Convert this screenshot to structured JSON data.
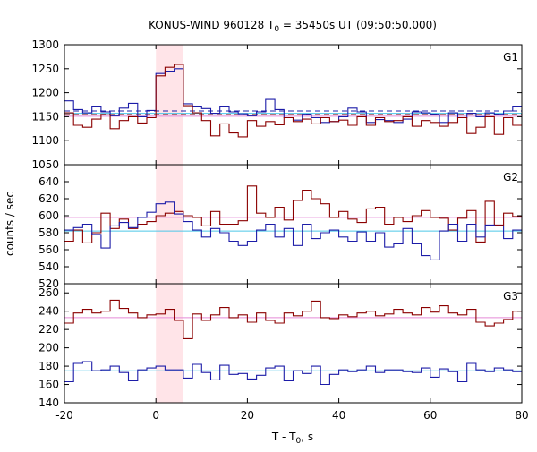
{
  "chart_data": {
    "type": "line",
    "title": {
      "prefix": "KONUS-WIND 960128 T",
      "subscript": "0",
      "suffix": " = 35450s UT (09:50:50.000)"
    },
    "xlabel": {
      "prefix": "T - T",
      "subscript": "0",
      "suffix": ", s"
    },
    "ylabel": "counts / sec",
    "xlim": [
      -20,
      80
    ],
    "xticks": [
      "-20",
      "0",
      "20",
      "40",
      "60",
      "80"
    ],
    "shaded_interval": [
      0,
      6
    ],
    "shade_color": "#ffe4e8",
    "colors": {
      "dark_red": "#8b0000",
      "blue": "#1c1ca8",
      "pink": "#e58ad8",
      "cyan": "#4cc6e8"
    },
    "panels": [
      {
        "label": "G1",
        "ylim": [
          1050,
          1300
        ],
        "yticks": [
          "1050",
          "1100",
          "1150",
          "1200",
          "1250",
          "1300"
        ],
        "series": [
          {
            "color_key": "blue",
            "x": [
              -20,
              -18,
              -16,
              -14,
              -12,
              -10,
              -8,
              -6,
              -4,
              -2,
              0,
              2,
              4,
              6,
              8,
              10,
              12,
              14,
              16,
              18,
              20,
              22,
              24,
              26,
              28,
              30,
              32,
              34,
              36,
              38,
              40,
              42,
              44,
              46,
              48,
              50,
              52,
              54,
              56,
              58,
              60,
              62,
              64,
              66,
              68,
              70,
              72,
              74,
              76,
              78
            ],
            "y": [
              1183,
              1165,
              1158,
              1172,
              1160,
              1152,
              1168,
              1178,
              1150,
              1163,
              1240,
              1245,
              1250,
              1177,
              1172,
              1167,
              1157,
              1172,
              1160,
              1156,
              1152,
              1160,
              1186,
              1165,
              1148,
              1143,
              1155,
              1148,
              1138,
              1140,
              1150,
              1168,
              1160,
              1138,
              1144,
              1142,
              1138,
              1145,
              1160,
              1158,
              1155,
              1138,
              1158,
              1148,
              1157,
              1150,
              1158,
              1155,
              1162,
              1172
            ]
          },
          {
            "color_key": "dark_red",
            "x": [
              -20,
              -18,
              -16,
              -14,
              -12,
              -10,
              -8,
              -6,
              -4,
              -2,
              0,
              2,
              4,
              6,
              8,
              10,
              12,
              14,
              16,
              18,
              20,
              22,
              24,
              26,
              28,
              30,
              32,
              34,
              36,
              38,
              40,
              42,
              44,
              46,
              48,
              50,
              52,
              54,
              56,
              58,
              60,
              62,
              64,
              66,
              68,
              70,
              72,
              74,
              76,
              78
            ],
            "y": [
              1158,
              1132,
              1128,
              1145,
              1154,
              1125,
              1142,
              1150,
              1137,
              1148,
              1235,
              1253,
              1259,
              1173,
              1158,
              1142,
              1110,
              1135,
              1116,
              1108,
              1142,
              1130,
              1140,
              1133,
              1148,
              1140,
              1145,
              1135,
              1148,
              1140,
              1143,
              1132,
              1150,
              1132,
              1148,
              1140,
              1142,
              1150,
              1130,
              1142,
              1138,
              1130,
              1138,
              1148,
              1115,
              1128,
              1150,
              1113,
              1148,
              1132
            ]
          }
        ],
        "backgrounds": [
          {
            "color_key": "blue",
            "level": 1162,
            "dashed": true
          },
          {
            "color_key": "dark_red",
            "level": 1156,
            "dashed": true
          },
          {
            "color_key": "cyan",
            "level": 1157,
            "dashed": false
          },
          {
            "color_key": "pink",
            "level": 1151,
            "dashed": false
          }
        ]
      },
      {
        "label": "G2",
        "ylim": [
          520,
          660
        ],
        "yticks": [
          "520",
          "540",
          "560",
          "580",
          "600",
          "620",
          "640"
        ],
        "series": [
          {
            "color_key": "dark_red",
            "x": [
              -20,
              -18,
              -16,
              -14,
              -12,
              -10,
              -8,
              -6,
              -4,
              -2,
              0,
              2,
              4,
              6,
              8,
              10,
              12,
              14,
              16,
              18,
              20,
              22,
              24,
              26,
              28,
              30,
              32,
              34,
              36,
              38,
              40,
              42,
              44,
              46,
              48,
              50,
              52,
              54,
              56,
              58,
              60,
              62,
              64,
              66,
              68,
              70,
              72,
              74,
              76,
              78
            ],
            "y": [
              570,
              583,
              568,
              580,
              603,
              585,
              596,
              585,
              590,
              593,
              600,
              603,
              605,
              600,
              598,
              588,
              605,
              590,
              590,
              594,
              635,
              603,
              598,
              610,
              595,
              618,
              630,
              620,
              614,
              598,
              605,
              596,
              592,
              608,
              610,
              590,
              598,
              593,
              600,
              606,
              598,
              597,
              583,
              597,
              606,
              569,
              617,
              589,
              603,
              599
            ]
          },
          {
            "color_key": "blue",
            "x": [
              -20,
              -18,
              -16,
              -14,
              -12,
              -10,
              -8,
              -6,
              -4,
              -2,
              0,
              2,
              4,
              6,
              8,
              10,
              12,
              14,
              16,
              18,
              20,
              22,
              24,
              26,
              28,
              30,
              32,
              34,
              36,
              38,
              40,
              42,
              44,
              46,
              48,
              50,
              52,
              54,
              56,
              58,
              60,
              62,
              64,
              66,
              68,
              70,
              72,
              74,
              76,
              78
            ],
            "y": [
              583,
              586,
              590,
              578,
              562,
              588,
              592,
              586,
              598,
              604,
              614,
              616,
              602,
              593,
              583,
              575,
              585,
              580,
              570,
              565,
              570,
              583,
              590,
              575,
              585,
              565,
              590,
              573,
              580,
              583,
              575,
              570,
              581,
              570,
              580,
              563,
              567,
              585,
              567,
              553,
              548,
              582,
              590,
              570,
              590,
              575,
              589,
              588,
              573,
              583
            ]
          }
        ],
        "backgrounds": [
          {
            "color_key": "pink",
            "level": 598,
            "dashed": false
          },
          {
            "color_key": "cyan",
            "level": 582,
            "dashed": false
          }
        ]
      },
      {
        "label": "G3",
        "ylim": [
          140,
          270
        ],
        "yticks": [
          "140",
          "160",
          "180",
          "200",
          "220",
          "240",
          "260"
        ],
        "series": [
          {
            "color_key": "dark_red",
            "x": [
              -20,
              -18,
              -16,
              -14,
              -12,
              -10,
              -8,
              -6,
              -4,
              -2,
              0,
              2,
              4,
              6,
              8,
              10,
              12,
              14,
              16,
              18,
              20,
              22,
              24,
              26,
              28,
              30,
              32,
              34,
              36,
              38,
              40,
              42,
              44,
              46,
              48,
              50,
              52,
              54,
              56,
              58,
              60,
              62,
              64,
              66,
              68,
              70,
              72,
              74,
              76,
              78
            ],
            "y": [
              227,
              238,
              242,
              238,
              240,
              252,
              243,
              238,
              233,
              236,
              237,
              242,
              230,
              210,
              237,
              230,
              236,
              244,
              233,
              236,
              228,
              238,
              230,
              227,
              238,
              235,
              240,
              251,
              233,
              232,
              236,
              234,
              238,
              240,
              235,
              237,
              242,
              238,
              236,
              244,
              239,
              246,
              238,
              236,
              242,
              228,
              224,
              227,
              231,
              240
            ]
          },
          {
            "color_key": "blue",
            "x": [
              -20,
              -18,
              -16,
              -14,
              -12,
              -10,
              -8,
              -6,
              -4,
              -2,
              0,
              2,
              4,
              6,
              8,
              10,
              12,
              14,
              16,
              18,
              20,
              22,
              24,
              26,
              28,
              30,
              32,
              34,
              36,
              38,
              40,
              42,
              44,
              46,
              48,
              50,
              52,
              54,
              56,
              58,
              60,
              62,
              64,
              66,
              68,
              70,
              72,
              74,
              76,
              78
            ],
            "y": [
              163,
              183,
              185,
              175,
              176,
              180,
              173,
              164,
              176,
              178,
              180,
              176,
              176,
              167,
              182,
              173,
              165,
              181,
              171,
              172,
              166,
              170,
              178,
              180,
              164,
              175,
              172,
              180,
              160,
              171,
              176,
              174,
              176,
              180,
              173,
              176,
              176,
              174,
              173,
              178,
              168,
              177,
              174,
              163,
              183,
              176,
              174,
              178,
              176,
              174
            ]
          }
        ],
        "backgrounds": [
          {
            "color_key": "pink",
            "level": 233,
            "dashed": false
          },
          {
            "color_key": "cyan",
            "level": 175,
            "dashed": false
          }
        ]
      }
    ]
  }
}
